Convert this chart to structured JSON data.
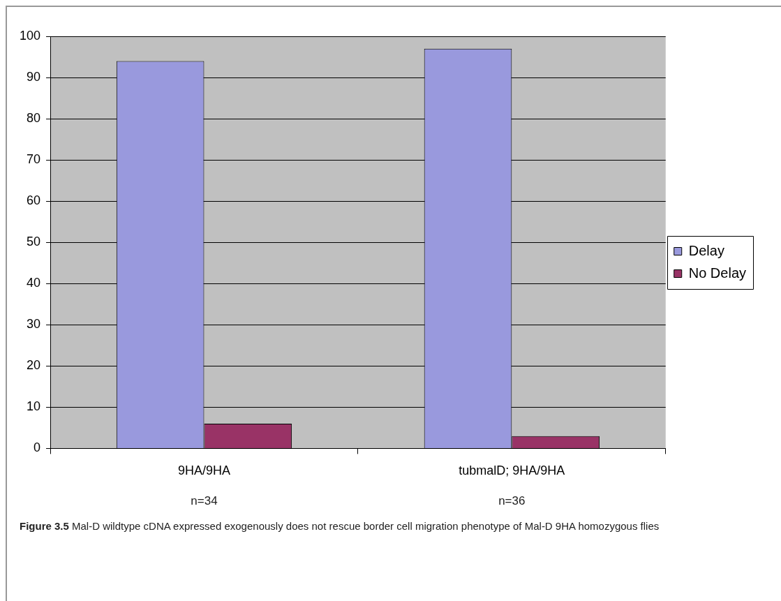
{
  "chart_data": {
    "type": "bar",
    "categories": [
      "9HA/9HA",
      "tubmalD; 9HA/9HA"
    ],
    "series": [
      {
        "name": "Delay",
        "color": "#9999dd",
        "values": [
          94,
          97
        ]
      },
      {
        "name": "No Delay",
        "color": "#993366",
        "values": [
          6,
          3
        ]
      }
    ],
    "ylim": [
      0,
      100
    ],
    "yticks": [
      0,
      10,
      20,
      30,
      40,
      50,
      60,
      70,
      80,
      90,
      100
    ],
    "grid": "y",
    "legend": "right",
    "annotations": [
      "n=34",
      "n=36",
      "Figure 3.5",
      "Mal-D wildtype cDNA expressed exogenously does not rescue border cell migration phenotype of Mal-D 9HA homozygous flies"
    ]
  }
}
